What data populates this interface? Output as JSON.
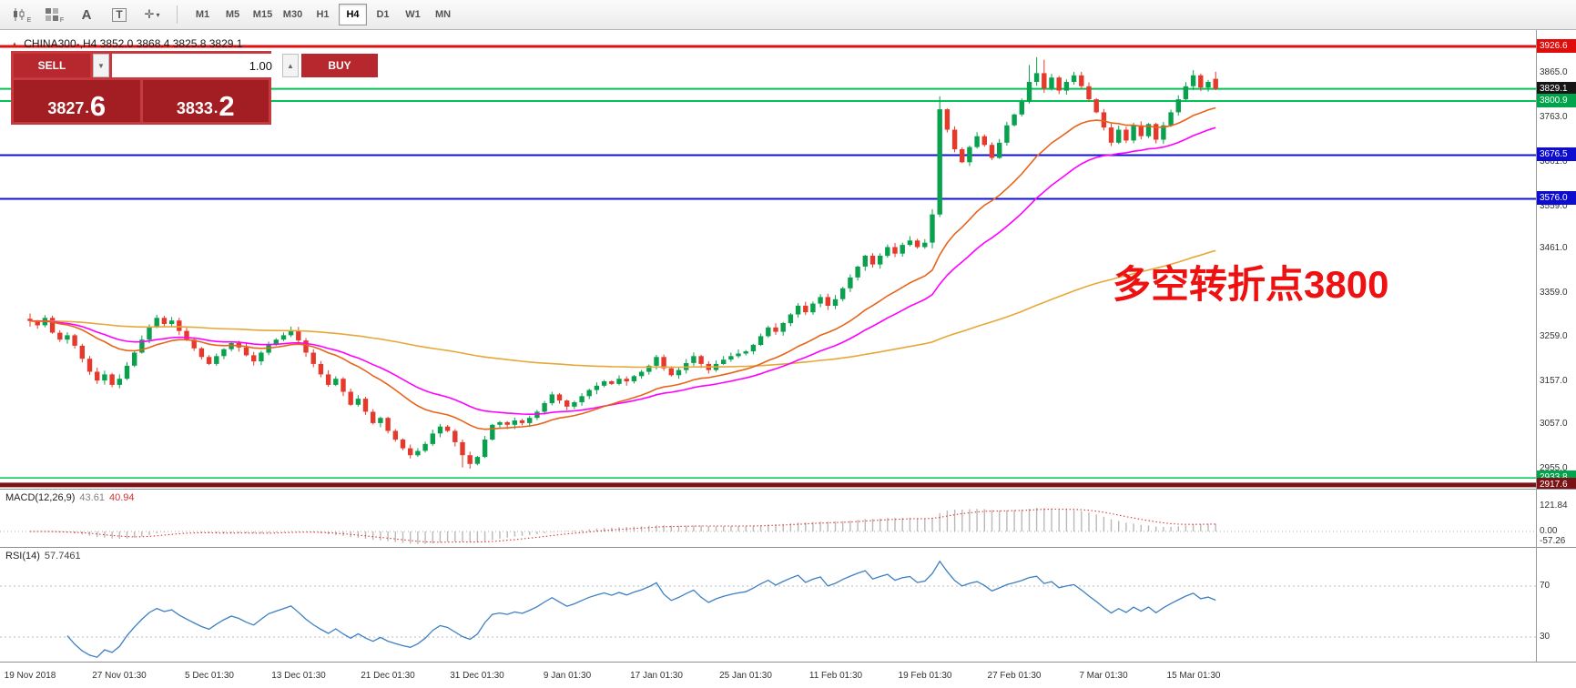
{
  "toolbar": {
    "tool_icons": [
      {
        "name": "chart-candlestick-icon",
        "glyph": "candles",
        "sub": "E"
      },
      {
        "name": "indicator-grid-icon",
        "glyph": "grid",
        "sub": "F"
      },
      {
        "name": "text-annotation-icon",
        "glyph": "A",
        "sub": ""
      },
      {
        "name": "text-tool-icon",
        "glyph": "T",
        "sub": ""
      },
      {
        "name": "crosshair-dropdown-icon",
        "glyph": "cross",
        "sub": ""
      }
    ],
    "timeframes": [
      {
        "label": "M1",
        "active": false
      },
      {
        "label": "M5",
        "active": false
      },
      {
        "label": "M15",
        "active": false
      },
      {
        "label": "M30",
        "active": false
      },
      {
        "label": "H1",
        "active": false
      },
      {
        "label": "H4",
        "active": true
      },
      {
        "label": "D1",
        "active": false
      },
      {
        "label": "W1",
        "active": false
      },
      {
        "label": "MN",
        "active": false
      }
    ]
  },
  "chart_header": {
    "marker": "▲",
    "symbol_title": "CHINA300-,H4",
    "ohlc": "3852.0 3868.4 3825.8 3829.1"
  },
  "trade_panel": {
    "sell_label": "SELL",
    "buy_label": "BUY",
    "volume_value": "1.00",
    "dropdown_icon": "▼",
    "increase_icon": "▲",
    "point": ".",
    "sell_price_int": "3827",
    "sell_price_frac": "6",
    "buy_price_int": "3833",
    "buy_price_frac": "2"
  },
  "annotation": {
    "text": "多空转折点3800",
    "color": "#ee1111"
  },
  "price_axis": {
    "ticks": [
      {
        "price": 3865.0,
        "label": "3865.0"
      },
      {
        "price": 3763.0,
        "label": "3763.0"
      },
      {
        "price": 3661.0,
        "label": "3661.0"
      },
      {
        "price": 3559.0,
        "label": "3559.0"
      },
      {
        "price": 3461.0,
        "label": "3461.0"
      },
      {
        "price": 3359.0,
        "label": "3359.0"
      },
      {
        "price": 3259.0,
        "label": "3259.0"
      },
      {
        "price": 3157.0,
        "label": "3157.0"
      },
      {
        "price": 3057.0,
        "label": "3057.0"
      },
      {
        "price": 2955.0,
        "label": "2955.0"
      }
    ],
    "badges": [
      {
        "price": 3926.6,
        "label": "3926.6",
        "bg": "#e00b0b"
      },
      {
        "price": 3829.1,
        "label": "3829.1",
        "bg": "#161616"
      },
      {
        "price": 3800.9,
        "label": "3800.9",
        "bg": "#00a44a"
      },
      {
        "price": 3676.5,
        "label": "3676.5",
        "bg": "#0d0dcf"
      },
      {
        "price": 3576.0,
        "label": "3576.0",
        "bg": "#0d0dcf"
      },
      {
        "price": 2933.8,
        "label": "2933.8",
        "bg": "#00a44a"
      },
      {
        "price": 2917.6,
        "label": "2917.6",
        "bg": "#7c1216"
      }
    ]
  },
  "hlines": [
    {
      "price": 3926.6,
      "color": "#dd0f0f",
      "width": 3
    },
    {
      "price": 3829.1,
      "color": "#00c455",
      "width": 2
    },
    {
      "price": 3800.9,
      "color": "#00c455",
      "width": 2
    },
    {
      "price": 3676.5,
      "color": "#1212d6",
      "width": 2
    },
    {
      "price": 3576.0,
      "color": "#1212d6",
      "width": 2
    },
    {
      "price": 2933.8,
      "color": "#00c455",
      "width": 1.5
    },
    {
      "price": 2917.6,
      "color": "#7c1216",
      "width": 5
    }
  ],
  "macd_panel": {
    "label": "MACD(12,26,9)",
    "value_main": "43.61",
    "value_signal": "40.94",
    "axis_labels": [
      {
        "value": 121.84,
        "label": "121.84"
      },
      {
        "value": 0,
        "label": "0.00"
      },
      {
        "value": -57.26,
        "label": "-57.26"
      }
    ]
  },
  "rsi_panel": {
    "label": "RSI(14)",
    "value": "57.7461",
    "levels": [
      {
        "value": 70,
        "label": "70"
      },
      {
        "value": 30,
        "label": "30"
      }
    ]
  },
  "colors": {
    "bull": "#0aa14e",
    "bear": "#e5392c",
    "macd_hist": "#b9b9b9",
    "macd_signal": "#e23535",
    "rsi_line": "#3e7fc1"
  },
  "chart_data": {
    "type": "candlestick",
    "symbol": "CHINA300-",
    "timeframe": "H4",
    "current_ohlc": {
      "open": 3852.0,
      "high": 3868.4,
      "low": 3825.8,
      "close": 3829.1
    },
    "y_range": [
      2909,
      3964
    ],
    "x_labels": [
      "19 Nov 2018",
      "27 Nov 01:30",
      "5 Dec 01:30",
      "13 Dec 01:30",
      "21 Dec 01:30",
      "31 Dec 01:30",
      "9 Jan 01:30",
      "17 Jan 01:30",
      "25 Jan 01:30",
      "11 Feb 01:30",
      "19 Feb 01:30",
      "27 Feb 01:30",
      "7 Mar 01:30",
      "15 Mar 01:30"
    ],
    "closes": [
      3295,
      3285,
      3302,
      3268,
      3252,
      3262,
      3238,
      3208,
      3178,
      3158,
      3172,
      3148,
      3162,
      3192,
      3222,
      3252,
      3282,
      3302,
      3288,
      3296,
      3272,
      3252,
      3232,
      3212,
      3196,
      3214,
      3230,
      3244,
      3234,
      3216,
      3202,
      3222,
      3242,
      3252,
      3262,
      3272,
      3250,
      3222,
      3196,
      3172,
      3148,
      3162,
      3132,
      3102,
      3116,
      3086,
      3060,
      3072,
      3042,
      3022,
      3002,
      2986,
      2996,
      3012,
      3036,
      3052,
      3042,
      3016,
      2986,
      2966,
      2982,
      3022,
      3056,
      3062,
      3056,
      3066,
      3060,
      3072,
      3086,
      3106,
      3126,
      3112,
      3098,
      3108,
      3122,
      3136,
      3146,
      3156,
      3150,
      3162,
      3156,
      3168,
      3178,
      3192,
      3212,
      3186,
      3170,
      3182,
      3198,
      3214,
      3196,
      3182,
      3196,
      3206,
      3214,
      3220,
      3225,
      3240,
      3260,
      3280,
      3270,
      3290,
      3310,
      3330,
      3315,
      3335,
      3350,
      3330,
      3345,
      3370,
      3395,
      3420,
      3445,
      3425,
      3445,
      3465,
      3450,
      3470,
      3480,
      3465,
      3475,
      3540,
      3782,
      3735,
      3690,
      3660,
      3695,
      3720,
      3700,
      3670,
      3705,
      3745,
      3770,
      3800,
      3845,
      3865,
      3830,
      3855,
      3825,
      3845,
      3860,
      3835,
      3805,
      3775,
      3740,
      3705,
      3735,
      3710,
      3745,
      3720,
      3748,
      3712,
      3745,
      3775,
      3805,
      3835,
      3860,
      3832,
      3845,
      3829.1
    ],
    "candle_overrides": {
      "0": [
        3300,
        3312,
        3282,
        3295
      ],
      "58": [
        3016,
        3022,
        2958,
        2986
      ],
      "59": [
        2986,
        2994,
        2955,
        2966
      ],
      "121": [
        3475,
        3552,
        3462,
        3540
      ],
      "122": [
        3540,
        3812,
        3534,
        3782
      ],
      "134": [
        3800,
        3884,
        3795,
        3845
      ],
      "135": [
        3845,
        3902,
        3836,
        3865
      ],
      "136": [
        3865,
        3896,
        3820,
        3830
      ],
      "156": [
        3835,
        3872,
        3826,
        3860
      ],
      "159": [
        3852,
        3868.4,
        3825.8,
        3829.1
      ]
    },
    "moving_averages": [
      {
        "name": "ma-fast-line",
        "period": 20,
        "color": "#e8641a"
      },
      {
        "name": "ma-medium-line",
        "period": 34,
        "color": "#ff00ff"
      },
      {
        "name": "ma-slow-line",
        "period": 150,
        "color": "#e5a83a"
      }
    ],
    "indicators": {
      "macd": {
        "fast": 12,
        "slow": 26,
        "signal": 9,
        "current_main": 43.61,
        "current_signal": 40.94,
        "axis": [
          121.84,
          0.0,
          -57.26
        ]
      },
      "rsi": {
        "period": 14,
        "current": 57.7461,
        "levels": [
          70,
          30
        ]
      }
    }
  }
}
